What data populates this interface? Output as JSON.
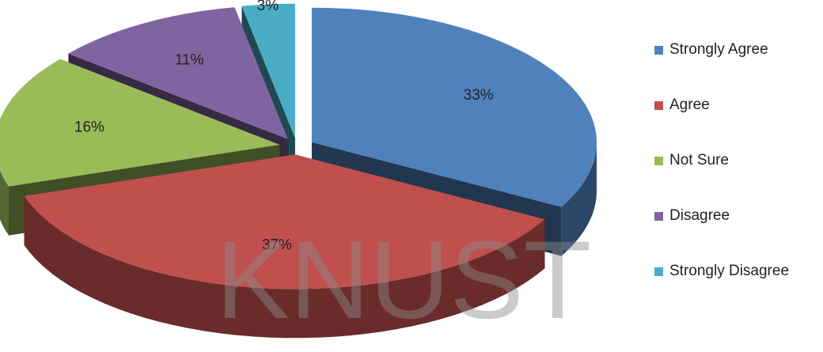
{
  "chart_data": {
    "type": "pie3d",
    "categories": [
      "Strongly Agree",
      "Agree",
      "Not Sure",
      "Disagree",
      "Strongly Disagree"
    ],
    "values": [
      33,
      37,
      16,
      11,
      3
    ],
    "value_labels": [
      "33%",
      "37%",
      "16%",
      "11%",
      "3%"
    ],
    "colors": [
      "#4f81bd",
      "#c0504d",
      "#9bbb59",
      "#8064a2",
      "#4bacc6"
    ],
    "legend": "right",
    "watermark": "KNUST"
  }
}
